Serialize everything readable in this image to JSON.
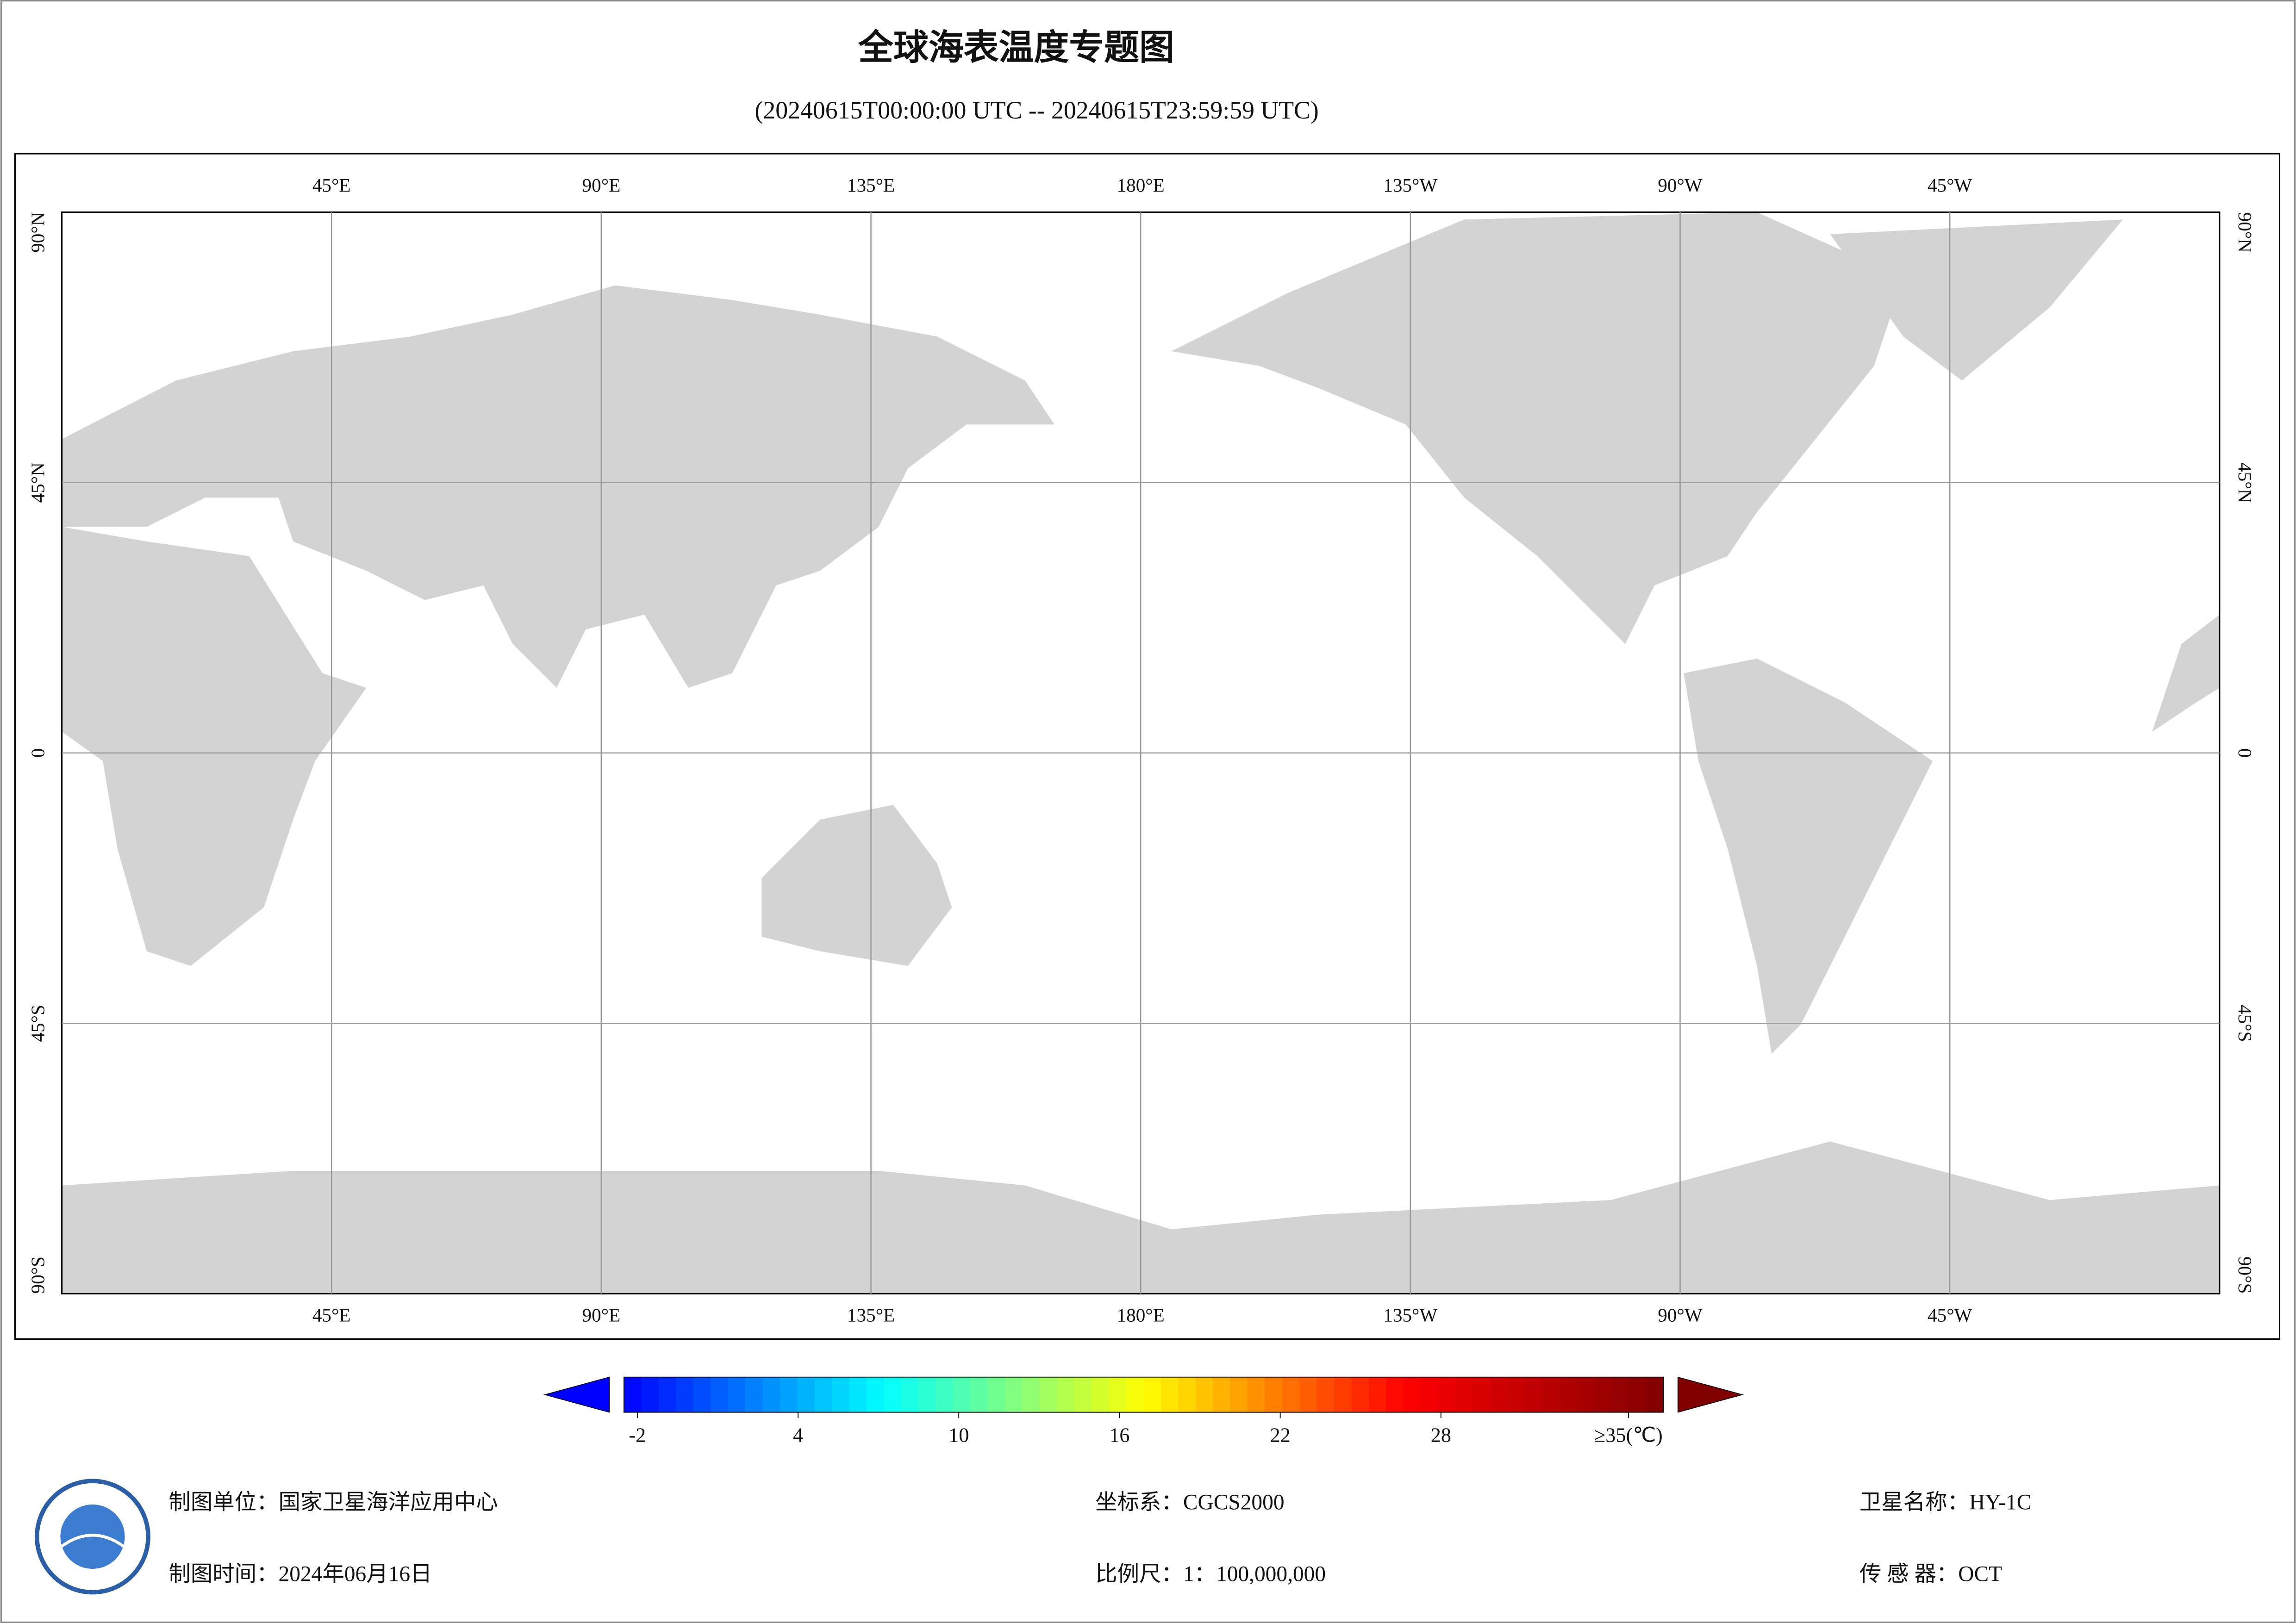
{
  "header": {
    "title": "全球海表温度专题图",
    "subtitle": "(20240615T00:00:00 UTC -- 20240615T23:59:59 UTC)"
  },
  "map": {
    "xlim": [
      0,
      360
    ],
    "ylim": [
      -90,
      90
    ],
    "lon_ticks": [
      {
        "value": 45,
        "label": "45°E"
      },
      {
        "value": 90,
        "label": "90°E"
      },
      {
        "value": 135,
        "label": "135°E"
      },
      {
        "value": 180,
        "label": "180°E"
      },
      {
        "value": 225,
        "label": "135°W"
      },
      {
        "value": 270,
        "label": "90°W"
      },
      {
        "value": 315,
        "label": "45°W"
      }
    ],
    "lat_ticks": [
      {
        "value": 90,
        "label": "90°N"
      },
      {
        "value": 45,
        "label": "45°N"
      },
      0,
      {
        "value": -45,
        "label": "45°S"
      },
      {
        "value": -90,
        "label": "90°S"
      }
    ],
    "grid": true,
    "land_color": "#d3d3d3"
  },
  "colorbar": {
    "lim": [
      -2.5,
      36.3
    ],
    "ticks": [
      -2,
      4,
      10,
      16,
      22,
      28,
      {
        "value": 35,
        "label": "≥35(℃)"
      }
    ],
    "colormap": [
      "#0000ff",
      "#00ffff",
      "#ffff00",
      "#ff0000",
      "#800000"
    ]
  },
  "footer": [
    "制图单位：国家卫星海洋应用中心",
    "制图时间：2024年06月16日",
    "坐标系：CGCS2000",
    "比例尺：1：100,000,000",
    "卫星名称：HY-1C",
    "传 感 器：OCT"
  ]
}
